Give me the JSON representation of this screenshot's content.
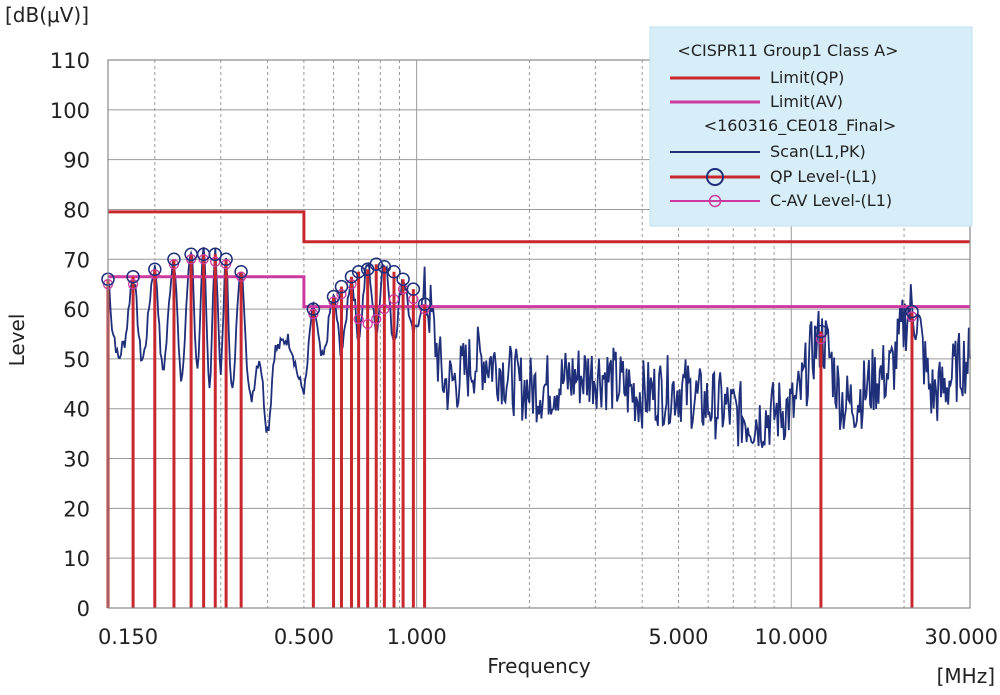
{
  "chart_data": {
    "type": "line",
    "xlabel": "Frequency",
    "ylabel": "Level",
    "x_unit": "[MHz]",
    "y_unit": "[dB(μV)]",
    "x_scale": "log",
    "xlim": [
      0.15,
      30
    ],
    "ylim": [
      0,
      110
    ],
    "grid": true,
    "legend_position": "top-right",
    "y_ticks": [
      0,
      10,
      20,
      30,
      40,
      50,
      60,
      70,
      80,
      90,
      100,
      110
    ],
    "x_tick_labels": [
      {
        "value": 0.15,
        "label": "0.150"
      },
      {
        "value": 0.5,
        "label": "0.500"
      },
      {
        "value": 1.0,
        "label": "1.000"
      },
      {
        "value": 5.0,
        "label": "5.000"
      },
      {
        "value": 10.0,
        "label": "10.000"
      },
      {
        "value": 30.0,
        "label": "30.000"
      }
    ],
    "legend": {
      "group1_title": "<CISPR11 Group1 Class A>",
      "group2_title": "<160316_CE018_Final>",
      "entries": [
        {
          "key": "limit_qp",
          "label": "Limit(QP)",
          "color": "#c8282d",
          "style": "line"
        },
        {
          "key": "limit_av",
          "label": "Limit(AV)",
          "color": "#cc3aa0",
          "style": "line"
        },
        {
          "key": "scan",
          "label": "Scan(L1,PK)",
          "color": "#1f2f7a",
          "style": "line"
        },
        {
          "key": "qp",
          "label": "QP Level-(L1)",
          "color": "#c8282d",
          "style": "marker-large"
        },
        {
          "key": "cav",
          "label": "C-AV Level-(L1)",
          "color": "#cc3aa0",
          "style": "marker-small"
        }
      ]
    },
    "series": [
      {
        "key": "limit_qp",
        "name": "Limit(QP)",
        "color": "#c8282d",
        "points": [
          [
            0.15,
            79.5
          ],
          [
            0.5,
            79.5
          ],
          [
            0.5,
            73.5
          ],
          [
            30,
            73.5
          ]
        ]
      },
      {
        "key": "limit_av",
        "name": "Limit(AV)",
        "color": "#cc3aa0",
        "points": [
          [
            0.15,
            66.5
          ],
          [
            0.5,
            66.5
          ],
          [
            0.5,
            60.5
          ],
          [
            30,
            60.5
          ]
        ]
      },
      {
        "key": "qp",
        "name": "QP Level-(L1)",
        "color": "#c8282d",
        "points": [
          [
            0.15,
            66
          ],
          [
            0.175,
            66.5
          ],
          [
            0.2,
            68
          ],
          [
            0.225,
            70
          ],
          [
            0.25,
            71
          ],
          [
            0.27,
            71
          ],
          [
            0.29,
            71
          ],
          [
            0.31,
            70
          ],
          [
            0.34,
            67.5
          ],
          [
            0.53,
            60
          ],
          [
            0.6,
            62.5
          ],
          [
            0.63,
            64.5
          ],
          [
            0.67,
            66.5
          ],
          [
            0.7,
            67.5
          ],
          [
            0.74,
            68
          ],
          [
            0.78,
            69
          ],
          [
            0.82,
            68.5
          ],
          [
            0.87,
            67.5
          ],
          [
            0.92,
            66
          ],
          [
            0.98,
            64
          ],
          [
            1.05,
            61
          ],
          [
            12.0,
            55.5
          ],
          [
            21.0,
            59.5
          ]
        ]
      },
      {
        "key": "cav",
        "name": "C-AV Level-(L1)",
        "color": "#cc3aa0",
        "points": [
          [
            0.15,
            65
          ],
          [
            0.175,
            65
          ],
          [
            0.2,
            67
          ],
          [
            0.225,
            69
          ],
          [
            0.25,
            70
          ],
          [
            0.27,
            70
          ],
          [
            0.29,
            69.5
          ],
          [
            0.31,
            69
          ],
          [
            0.34,
            66.5
          ],
          [
            0.53,
            59
          ],
          [
            0.6,
            61.5
          ],
          [
            0.63,
            63
          ],
          [
            0.67,
            65
          ],
          [
            0.7,
            58
          ],
          [
            0.74,
            57
          ],
          [
            0.78,
            58
          ],
          [
            0.82,
            60
          ],
          [
            0.87,
            62
          ],
          [
            0.92,
            64
          ],
          [
            0.98,
            62
          ],
          [
            1.05,
            60
          ],
          [
            12.0,
            54
          ],
          [
            21.0,
            58.5
          ]
        ]
      },
      {
        "key": "scan",
        "name": "Scan(L1,PK)",
        "color": "#1f2f7a",
        "description_points": [
          [
            0.15,
            66
          ],
          [
            0.155,
            55
          ],
          [
            0.16,
            50
          ],
          [
            0.165,
            53
          ],
          [
            0.175,
            66
          ],
          [
            0.185,
            50
          ],
          [
            0.2,
            68
          ],
          [
            0.21,
            48
          ],
          [
            0.225,
            70
          ],
          [
            0.235,
            46
          ],
          [
            0.25,
            72
          ],
          [
            0.26,
            47
          ],
          [
            0.27,
            72
          ],
          [
            0.28,
            45
          ],
          [
            0.29,
            71
          ],
          [
            0.3,
            48
          ],
          [
            0.31,
            70
          ],
          [
            0.32,
            44
          ],
          [
            0.34,
            67
          ],
          [
            0.36,
            42
          ],
          [
            0.38,
            50
          ],
          [
            0.4,
            36
          ],
          [
            0.42,
            52
          ],
          [
            0.45,
            54
          ],
          [
            0.5,
            44
          ],
          [
            0.53,
            60
          ],
          [
            0.56,
            50
          ],
          [
            0.6,
            62
          ],
          [
            0.63,
            52
          ],
          [
            0.67,
            66
          ],
          [
            0.7,
            55
          ],
          [
            0.74,
            69
          ],
          [
            0.78,
            56
          ],
          [
            0.82,
            70
          ],
          [
            0.87,
            54
          ],
          [
            0.92,
            66
          ],
          [
            0.98,
            55
          ],
          [
            1.05,
            62
          ],
          [
            1.2,
            45
          ],
          [
            1.5,
            50
          ],
          [
            2.0,
            44
          ],
          [
            3.0,
            47
          ],
          [
            4.0,
            43
          ],
          [
            5.0,
            44
          ],
          [
            6.0,
            41
          ],
          [
            8.0,
            38
          ],
          [
            10.0,
            40
          ],
          [
            12.0,
            54
          ],
          [
            14.0,
            41
          ],
          [
            18.0,
            47
          ],
          [
            21.0,
            60
          ],
          [
            24.0,
            43
          ],
          [
            30.0,
            50
          ]
        ]
      }
    ]
  }
}
